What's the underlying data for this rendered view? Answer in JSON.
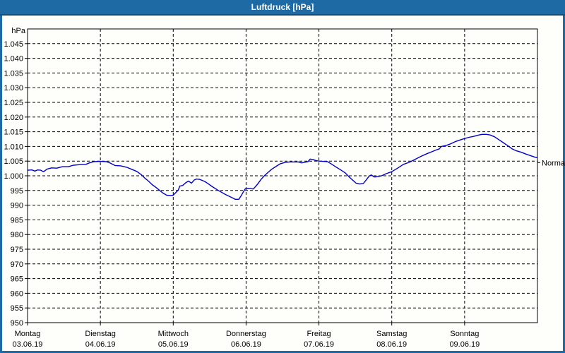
{
  "window": {
    "title": "Luftdruck [hPa]"
  },
  "colors": {
    "titlebar_bg": "#1d6aa4",
    "titlebar_border": "#114e7d",
    "titlebar_text": "#ffffff",
    "frame": "#1d6aa4",
    "chart_bg": "#fefefb",
    "grid": "#000000",
    "axis": "#000000",
    "text": "#000000",
    "line": "#0000c8"
  },
  "chart_data": {
    "type": "line",
    "title": "Luftdruck [hPa]",
    "y_axis": {
      "unit_label": "hPa",
      "min": 950,
      "max": 1050,
      "tick_step": 5,
      "tick_labels": [
        "950",
        "955",
        "960",
        "965",
        "970",
        "975",
        "980",
        "985",
        "990",
        "995",
        "1.000",
        "1.005",
        "1.010",
        "1.015",
        "1.020",
        "1.025",
        "1.030",
        "1.035",
        "1.040",
        "1.045"
      ],
      "grid": "dashed"
    },
    "x_axis": {
      "span_days": 7,
      "days": [
        {
          "name": "Montag",
          "date": "03.06.19"
        },
        {
          "name": "Dienstag",
          "date": "04.06.19"
        },
        {
          "name": "Mittwoch",
          "date": "05.06.19"
        },
        {
          "name": "Donnerstag",
          "date": "06.06.19"
        },
        {
          "name": "Freitag",
          "date": "07.06.19"
        },
        {
          "name": "Samstag",
          "date": "08.06.19"
        },
        {
          "name": "Sonntag",
          "date": "09.06.19"
        }
      ],
      "grid": "dashed"
    },
    "annotations": [
      {
        "label": "Normal",
        "value": 1004.5,
        "side": "right"
      }
    ],
    "series": [
      {
        "name": "Luftdruck",
        "color": "#0000c8",
        "points": [
          [
            0.0,
            1001.9
          ],
          [
            0.06,
            1002.0
          ],
          [
            0.1,
            1001.6
          ],
          [
            0.14,
            1002.0
          ],
          [
            0.18,
            1001.9
          ],
          [
            0.22,
            1001.4
          ],
          [
            0.27,
            1002.3
          ],
          [
            0.33,
            1002.7
          ],
          [
            0.4,
            1002.6
          ],
          [
            0.48,
            1003.1
          ],
          [
            0.56,
            1003.1
          ],
          [
            0.63,
            1003.6
          ],
          [
            0.72,
            1003.8
          ],
          [
            0.8,
            1003.9
          ],
          [
            0.85,
            1004.4
          ],
          [
            0.91,
            1004.8
          ],
          [
            1.0,
            1004.9
          ],
          [
            1.08,
            1004.8
          ],
          [
            1.13,
            1004.4
          ],
          [
            1.2,
            1003.5
          ],
          [
            1.28,
            1003.4
          ],
          [
            1.36,
            1002.9
          ],
          [
            1.43,
            1002.2
          ],
          [
            1.5,
            1001.5
          ],
          [
            1.56,
            1000.4
          ],
          [
            1.61,
            999.2
          ],
          [
            1.66,
            998.2
          ],
          [
            1.71,
            997.0
          ],
          [
            1.76,
            996.1
          ],
          [
            1.81,
            995.1
          ],
          [
            1.86,
            994.1
          ],
          [
            1.91,
            993.4
          ],
          [
            1.96,
            993.3
          ],
          [
            2.0,
            993.4
          ],
          [
            2.04,
            994.4
          ],
          [
            2.07,
            995.2
          ],
          [
            2.09,
            996.5
          ],
          [
            2.13,
            996.7
          ],
          [
            2.17,
            997.6
          ],
          [
            2.21,
            998.2
          ],
          [
            2.25,
            997.5
          ],
          [
            2.29,
            998.6
          ],
          [
            2.32,
            998.9
          ],
          [
            2.36,
            998.8
          ],
          [
            2.43,
            998.1
          ],
          [
            2.48,
            997.3
          ],
          [
            2.53,
            996.4
          ],
          [
            2.62,
            995.0
          ],
          [
            2.72,
            993.6
          ],
          [
            2.82,
            992.4
          ],
          [
            2.85,
            992.0
          ],
          [
            2.9,
            992.0
          ],
          [
            2.93,
            993.1
          ],
          [
            2.96,
            994.4
          ],
          [
            2.99,
            995.6
          ],
          [
            3.03,
            995.7
          ],
          [
            3.07,
            995.6
          ],
          [
            3.1,
            995.5
          ],
          [
            3.15,
            996.9
          ],
          [
            3.2,
            998.6
          ],
          [
            3.25,
            1000.0
          ],
          [
            3.3,
            1001.1
          ],
          [
            3.35,
            1002.2
          ],
          [
            3.4,
            1003.0
          ],
          [
            3.47,
            1004.1
          ],
          [
            3.54,
            1004.6
          ],
          [
            3.6,
            1004.7
          ],
          [
            3.66,
            1004.7
          ],
          [
            3.72,
            1004.7
          ],
          [
            3.76,
            1004.4
          ],
          [
            3.8,
            1004.6
          ],
          [
            3.85,
            1004.8
          ],
          [
            3.88,
            1005.7
          ],
          [
            3.92,
            1005.5
          ],
          [
            3.96,
            1005.2
          ],
          [
            4.0,
            1005.0
          ],
          [
            4.06,
            1004.9
          ],
          [
            4.12,
            1004.8
          ],
          [
            4.18,
            1003.9
          ],
          [
            4.24,
            1002.9
          ],
          [
            4.3,
            1002.0
          ],
          [
            4.36,
            1001.0
          ],
          [
            4.42,
            999.5
          ],
          [
            4.46,
            998.6
          ],
          [
            4.51,
            997.5
          ],
          [
            4.56,
            997.2
          ],
          [
            4.61,
            997.4
          ],
          [
            4.65,
            998.6
          ],
          [
            4.69,
            999.9
          ],
          [
            4.72,
            1000.3
          ],
          [
            4.76,
            999.6
          ],
          [
            4.81,
            999.7
          ],
          [
            4.86,
            1000.0
          ],
          [
            4.92,
            1000.7
          ],
          [
            5.0,
            1001.4
          ],
          [
            5.08,
            1002.6
          ],
          [
            5.16,
            1003.9
          ],
          [
            5.24,
            1004.6
          ],
          [
            5.32,
            1005.6
          ],
          [
            5.4,
            1006.6
          ],
          [
            5.48,
            1007.5
          ],
          [
            5.56,
            1008.3
          ],
          [
            5.62,
            1008.9
          ],
          [
            5.65,
            1009.1
          ],
          [
            5.68,
            1010.0
          ],
          [
            5.74,
            1010.3
          ],
          [
            5.8,
            1010.8
          ],
          [
            5.88,
            1011.7
          ],
          [
            5.94,
            1012.2
          ],
          [
            6.0,
            1012.7
          ],
          [
            6.06,
            1013.1
          ],
          [
            6.12,
            1013.4
          ],
          [
            6.18,
            1013.8
          ],
          [
            6.24,
            1014.1
          ],
          [
            6.3,
            1014.1
          ],
          [
            6.35,
            1013.9
          ],
          [
            6.41,
            1013.3
          ],
          [
            6.47,
            1012.3
          ],
          [
            6.53,
            1011.3
          ],
          [
            6.59,
            1010.3
          ],
          [
            6.65,
            1009.2
          ],
          [
            6.71,
            1008.5
          ],
          [
            6.78,
            1008.0
          ],
          [
            6.84,
            1007.4
          ],
          [
            6.9,
            1006.9
          ],
          [
            6.96,
            1006.4
          ],
          [
            6.99,
            1006.2
          ]
        ]
      }
    ]
  },
  "layout_values": {
    "note": ""
  }
}
